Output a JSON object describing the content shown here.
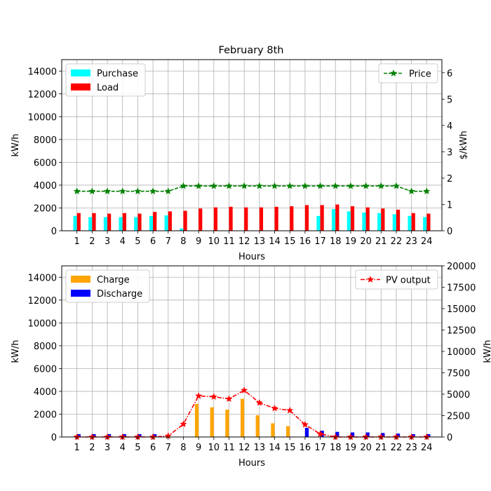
{
  "figure": {
    "title": "February 8th"
  },
  "chart_data": [
    {
      "type": "bar",
      "title": "February 8th",
      "xlabel": "Hours",
      "ylabel": "kW/h",
      "y2label": "$/kWh",
      "ylim": [
        0,
        15000
      ],
      "y2lim": [
        0,
        6.5
      ],
      "yticks": [
        0,
        2000,
        4000,
        6000,
        8000,
        10000,
        12000,
        14000
      ],
      "y2ticks": [
        0,
        1,
        2,
        3,
        4,
        5,
        6
      ],
      "grid": true,
      "categories": [
        "1",
        "2",
        "3",
        "4",
        "5",
        "6",
        "7",
        "8",
        "9",
        "10",
        "11",
        "12",
        "13",
        "14",
        "15",
        "16",
        "17",
        "18",
        "19",
        "20",
        "21",
        "22",
        "23",
        "24"
      ],
      "series": [
        {
          "name": "Purchase",
          "kind": "bar",
          "color": "#00ffff",
          "values": [
            1300,
            1200,
            1200,
            1200,
            1200,
            1300,
            1350,
            200,
            0,
            0,
            0,
            0,
            0,
            0,
            0,
            0,
            1300,
            1900,
            1700,
            1600,
            1550,
            1450,
            1300,
            1200
          ]
        },
        {
          "name": "Load",
          "kind": "bar",
          "color": "#ff0000",
          "values": [
            1550,
            1550,
            1500,
            1550,
            1500,
            1650,
            1700,
            1750,
            1950,
            2050,
            2100,
            2050,
            2050,
            2100,
            2150,
            2250,
            2250,
            2300,
            2150,
            2050,
            1950,
            1850,
            1550,
            1500
          ]
        },
        {
          "name": "Price",
          "kind": "line",
          "axis": "right",
          "color": "#008000",
          "values": [
            1.5,
            1.5,
            1.5,
            1.5,
            1.5,
            1.5,
            1.5,
            1.7,
            1.7,
            1.7,
            1.7,
            1.7,
            1.7,
            1.7,
            1.7,
            1.7,
            1.7,
            1.7,
            1.7,
            1.7,
            1.7,
            1.7,
            1.5,
            1.5
          ]
        }
      ],
      "legend_left": "upper-left",
      "legend_right": "upper-right"
    },
    {
      "type": "bar",
      "title": "",
      "xlabel": "Hours",
      "ylabel": "kW/h",
      "y2label": "kW/h",
      "ylim": [
        0,
        15000
      ],
      "y2lim": [
        0,
        20000
      ],
      "yticks": [
        0,
        2000,
        4000,
        6000,
        8000,
        10000,
        12000,
        14000
      ],
      "y2ticks": [
        0,
        2500,
        5000,
        7500,
        10000,
        12500,
        15000,
        17500,
        20000
      ],
      "grid": true,
      "categories": [
        "1",
        "2",
        "3",
        "4",
        "5",
        "6",
        "7",
        "8",
        "9",
        "10",
        "11",
        "12",
        "13",
        "14",
        "15",
        "16",
        "17",
        "18",
        "19",
        "20",
        "21",
        "22",
        "23",
        "24"
      ],
      "series": [
        {
          "name": "Charge",
          "kind": "bar",
          "color": "#ffa500",
          "values": [
            0,
            0,
            0,
            0,
            0,
            0,
            0,
            0,
            2900,
            2600,
            2400,
            3350,
            1900,
            1200,
            950,
            0,
            0,
            0,
            0,
            0,
            0,
            0,
            0,
            0
          ]
        },
        {
          "name": "Discharge",
          "kind": "bar",
          "color": "#0000ff",
          "values": [
            250,
            250,
            250,
            250,
            250,
            250,
            0,
            0,
            0,
            0,
            0,
            0,
            0,
            0,
            0,
            800,
            550,
            450,
            400,
            400,
            350,
            300,
            250,
            250
          ]
        },
        {
          "name": "PV output",
          "kind": "line",
          "axis": "right",
          "color": "#ff0000",
          "values": [
            0,
            0,
            0,
            0,
            0,
            0,
            120,
            1500,
            4800,
            4700,
            4450,
            5450,
            4000,
            3350,
            3100,
            1450,
            350,
            0,
            0,
            0,
            0,
            0,
            0,
            0
          ]
        }
      ],
      "legend_left": "upper-left",
      "legend_right": "upper-right"
    }
  ]
}
